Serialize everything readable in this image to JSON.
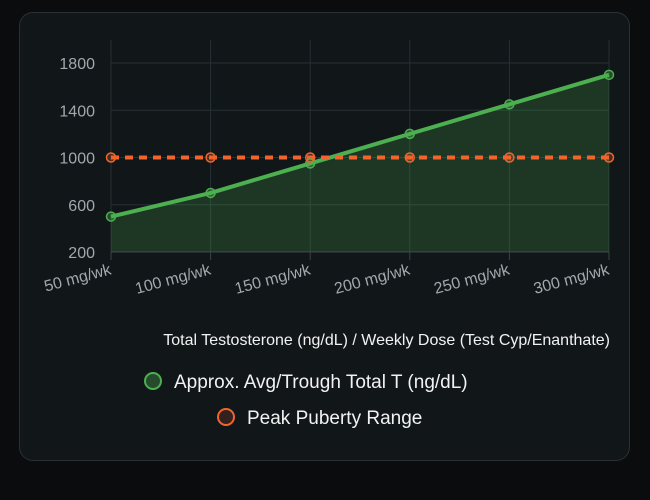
{
  "chart_data": {
    "type": "line",
    "x": [
      "50 mg/wk",
      "100 mg/wk",
      "150 mg/wk",
      "200 mg/wk",
      "250 mg/wk",
      "300 mg/wk"
    ],
    "series": [
      {
        "name": "Approx. Avg/Trough Total T (ng/dL)",
        "values": [
          500,
          700,
          950,
          1200,
          1450,
          1700
        ],
        "color": "#4caf50",
        "fill": true,
        "style": "solid"
      },
      {
        "name": "Peak Puberty Range",
        "values": [
          1000,
          1000,
          1000,
          1000,
          1000,
          1000
        ],
        "color": "#f0642d",
        "fill": false,
        "style": "dashed"
      }
    ],
    "yticks": [
      200,
      600,
      1000,
      1400,
      1800
    ],
    "ylim": [
      200,
      2000
    ],
    "xlabel": "Total Testosterone (ng/dL) / Weekly Dose (Test Cyp/Enanthate)",
    "ylabel": "",
    "grid": true,
    "legend": "bottom"
  }
}
